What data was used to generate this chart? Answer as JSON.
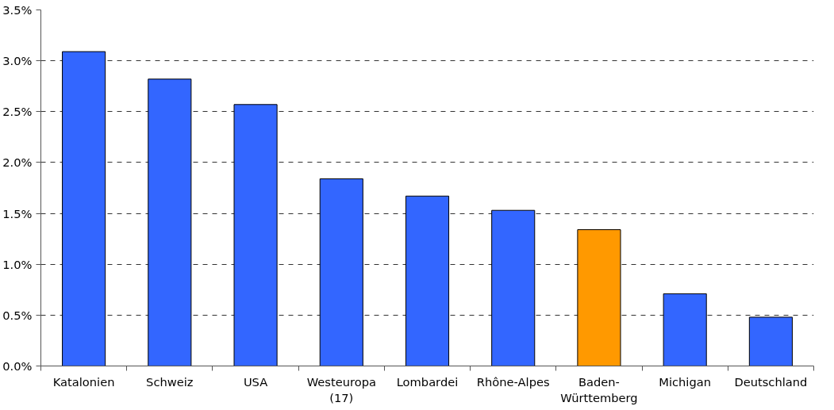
{
  "chart_data": {
    "type": "bar",
    "categories": [
      "Katalonien",
      "Schweiz",
      "USA",
      "Westeuropa (17)",
      "Lombardei",
      "Rhône-Alpes",
      "Baden-Württemberg",
      "Michigan",
      "Deutschland"
    ],
    "values": [
      3.09,
      2.82,
      2.57,
      1.84,
      1.67,
      1.53,
      1.34,
      0.71,
      0.48
    ],
    "colors": [
      "#3366ff",
      "#3366ff",
      "#3366ff",
      "#3366ff",
      "#3366ff",
      "#3366ff",
      "#ff9900",
      "#3366ff",
      "#3366ff"
    ],
    "ylim": [
      0,
      3.5
    ],
    "yticks": [
      {
        "value": 0,
        "label": "0.0%"
      },
      {
        "value": 0.5,
        "label": "0.5%"
      },
      {
        "value": 1.0,
        "label": "1.0%"
      },
      {
        "value": 1.5,
        "label": "1.5%"
      },
      {
        "value": 2.0,
        "label": "2.0%"
      },
      {
        "value": 2.5,
        "label": "2.5%"
      },
      {
        "value": 3.0,
        "label": "3.0%"
      },
      {
        "value": 3.5,
        "label": "3.5%"
      }
    ],
    "grid": "y"
  }
}
